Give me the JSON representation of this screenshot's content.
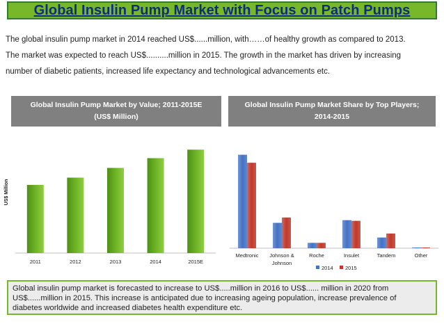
{
  "title": "Global Insulin Pump Market with Focus on Patch Pumps",
  "intro": {
    "line1": "The global insulin pump market in 2014 reached US$......million, with……of healthy growth as compared to 2013.",
    "line2": "The market was expected to reach US$..........million in 2015. The growth in the market has driven by increasing",
    "line3": "number of diabetic patients, increased life expectancy and technological advancements etc."
  },
  "chart_data": [
    {
      "type": "bar",
      "title_line1": "Global Insulin Pump Market by Value; 2011-2015E",
      "title_line2": "(US$ Million)",
      "categories": [
        "2011",
        "2012",
        "2013",
        "2014",
        "2015E"
      ],
      "values": [
        56,
        62,
        70,
        78,
        85
      ],
      "xlabel": "",
      "ylabel": "US$ Million",
      "ylim": [
        0,
        100
      ],
      "color": "#6ab023"
    },
    {
      "type": "bar",
      "title_line1": "Global Insulin Pump Market Share by Top Players;",
      "title_line2": "2014-2015",
      "categories": [
        "Medtronic",
        "Johnson & Johnson",
        "Roche",
        "Insulet",
        "Tandem",
        "Other"
      ],
      "category_lines": [
        [
          "Medtronic"
        ],
        [
          "Johnson &",
          "Johnson"
        ],
        [
          "Roche"
        ],
        [
          "Insulet"
        ],
        [
          "Tandem"
        ],
        [
          "Other"
        ]
      ],
      "series": [
        {
          "name": "2014",
          "color": "#4472c4",
          "values": [
            70,
            19,
            4,
            21,
            8,
            0.5
          ]
        },
        {
          "name": "2015",
          "color": "#c0392b",
          "values": [
            64,
            23,
            4,
            20.5,
            11,
            0.5
          ]
        }
      ],
      "ylim": [
        0,
        75
      ],
      "legend_position": "bottom"
    }
  ],
  "summary": {
    "line1": "Global insulin pump market is forecasted to increase to US$.....million in 2016 to US$...... million in 2020 from",
    "line2": "US$......million in 2015. This increase is anticipated due to increasing ageing population, increase prevalence of",
    "line3": "diabetes worldwide and increased diabetes health expenditure etc."
  }
}
